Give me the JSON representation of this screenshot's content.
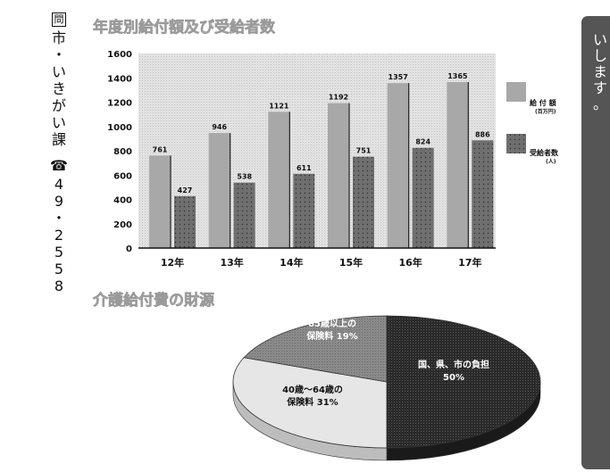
{
  "contact": {
    "label": "問",
    "dept": [
      "市",
      "・",
      "い",
      "き",
      "が",
      "い",
      "課"
    ],
    "phone_icon": "☎",
    "phone": [
      "4",
      "9",
      "・",
      "2",
      "5",
      "5",
      "8"
    ]
  },
  "side_panel": {
    "text": [
      "い",
      "し",
      "ま",
      "す",
      "。"
    ]
  },
  "chart_data": [
    {
      "type": "bar",
      "title": "年度別給付額及び受給者数",
      "categories": [
        "12年",
        "13年",
        "14年",
        "15年",
        "16年",
        "17年"
      ],
      "ylim": [
        0,
        1600
      ],
      "yticks": [
        "0",
        "200",
        "400",
        "600",
        "800",
        "1000",
        "1200",
        "1400",
        "1600"
      ],
      "series": [
        {
          "name": "給 付 額",
          "unit": "(百万円)",
          "values": [
            761,
            946,
            1121,
            1192,
            1357,
            1365
          ],
          "labels": [
            "761",
            "946",
            "1121",
            "1192",
            "1357",
            "1365"
          ]
        },
        {
          "name": "受給者数",
          "unit": "(人)",
          "values": [
            427,
            538,
            611,
            751,
            824,
            886
          ],
          "labels": [
            "427",
            "538",
            "611",
            "751",
            "824",
            "886"
          ]
        }
      ],
      "legend": "right",
      "colors": {
        "bar1": "#a8a8a8",
        "bar2": "#6e6e6e",
        "plot_bg": "#dcdcdc"
      }
    },
    {
      "type": "pie",
      "title": "介護給付費の財源",
      "slices": [
        {
          "label": "国、県、市の負担",
          "sublabel": "50%",
          "value": 50,
          "color": "#2a2a2a"
        },
        {
          "label": "40歳～64歳の",
          "sublabel": "保険料 31%",
          "value": 31,
          "color": "#e6e6e6"
        },
        {
          "label": "65歳以上の",
          "sublabel": "保険料 19%",
          "value": 19,
          "color": "#8a8a8a"
        }
      ]
    }
  ]
}
